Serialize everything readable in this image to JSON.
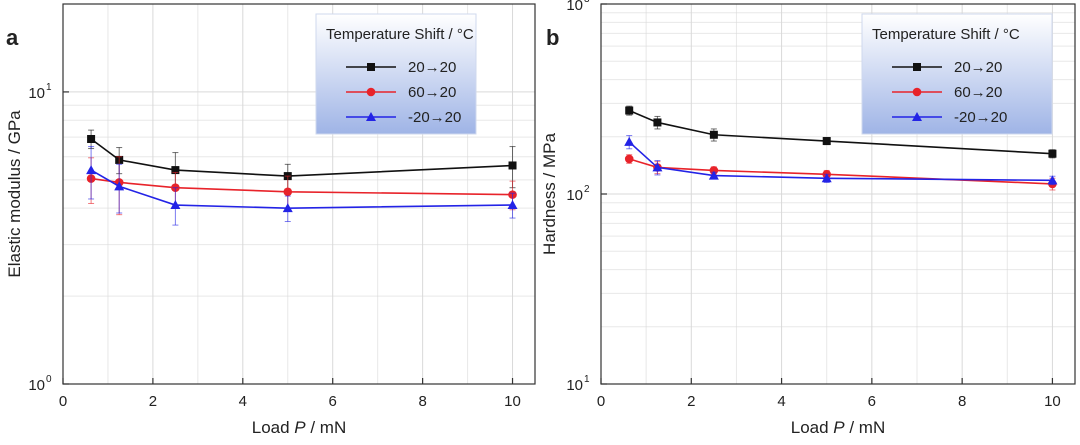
{
  "chart_data": [
    {
      "panel": "a",
      "type": "line",
      "xlabel_text": "Load ",
      "xlabel_var": "P",
      "xlabel_unit": " / mN",
      "ylabel": "Elastic modulus / GPa",
      "xlim": [
        0,
        10.5
      ],
      "ylim": [
        1,
        20
      ],
      "yscale": "log",
      "x_ticks": [
        "0",
        "2",
        "4",
        "6",
        "8",
        "10"
      ],
      "y_tick_base": "10",
      "y_tick_exps": [
        "0",
        "1"
      ],
      "grid": true,
      "legend": {
        "placement": "top-right",
        "title": "Temperature Shift / °C",
        "entries": [
          "20→20",
          "60→20",
          "-20→20"
        ]
      },
      "x": [
        0.625,
        1.25,
        2.5,
        5,
        10
      ],
      "series": [
        {
          "name": "20→20",
          "color": "#111111",
          "marker": "square",
          "values": [
            6.9,
            5.85,
            5.4,
            5.15,
            5.6
          ],
          "errors": [
            0.5,
            0.6,
            0.8,
            0.5,
            0.9
          ]
        },
        {
          "name": "60→20",
          "color": "#e8232a",
          "marker": "circle",
          "values": [
            5.05,
            4.9,
            4.7,
            4.55,
            4.45
          ],
          "errors": [
            0.9,
            1.1,
            0.6,
            0.6,
            0.5
          ]
        },
        {
          "name": "-20→20",
          "color": "#2323e6",
          "marker": "triangle",
          "values": [
            5.4,
            4.75,
            4.1,
            4.0,
            4.1
          ],
          "errors": [
            1.1,
            0.9,
            0.6,
            0.4,
            0.4
          ]
        }
      ]
    },
    {
      "panel": "b",
      "type": "line",
      "xlabel_text": "Load ",
      "xlabel_var": "P",
      "xlabel_unit": " / mN",
      "ylabel": "Hardness / MPa",
      "xlim": [
        0,
        10.5
      ],
      "ylim": [
        10,
        1000
      ],
      "yscale": "log",
      "x_ticks": [
        "0",
        "2",
        "4",
        "6",
        "8",
        "10"
      ],
      "y_tick_base": "10",
      "y_tick_exps": [
        "1",
        "2",
        "3"
      ],
      "grid": true,
      "legend": {
        "placement": "top-right",
        "title": "Temperature Shift / °C",
        "entries": [
          "20→20",
          "60→20",
          "-20→20"
        ]
      },
      "x": [
        0.625,
        1.25,
        2.5,
        5,
        10
      ],
      "series": [
        {
          "name": "20→20",
          "color": "#111111",
          "marker": "square",
          "values": [
            275,
            238,
            205,
            190,
            163
          ],
          "errors": [
            15,
            18,
            15,
            8,
            8
          ]
        },
        {
          "name": "60→20",
          "color": "#e8232a",
          "marker": "circle",
          "values": [
            153,
            138,
            133,
            127,
            113
          ],
          "errors": [
            8,
            10,
            6,
            6,
            8
          ]
        },
        {
          "name": "-20→20",
          "color": "#2323e6",
          "marker": "triangle",
          "values": [
            188,
            138,
            125,
            121,
            118
          ],
          "errors": [
            15,
            12,
            5,
            6,
            6
          ]
        }
      ]
    }
  ]
}
